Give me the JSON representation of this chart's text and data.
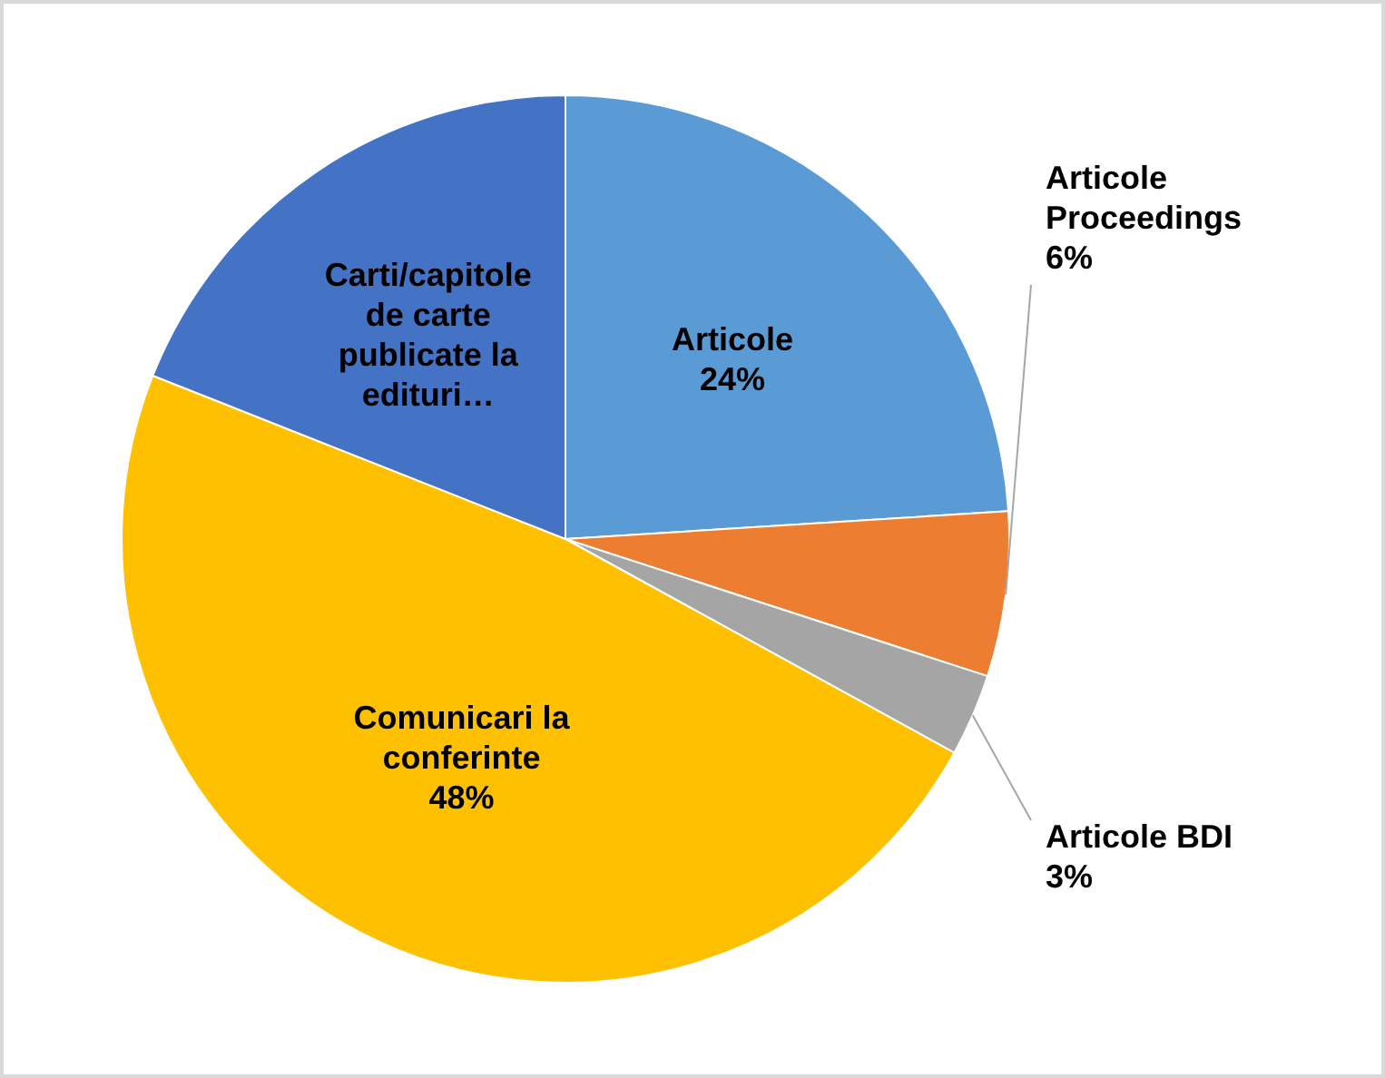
{
  "chart_data": {
    "type": "pie",
    "categories": [
      "Articole",
      "Articole Proceedings",
      "Articole BDI",
      "Comunicari la conferinte",
      "Carti/capitole de carte publicate la edituri…"
    ],
    "values": [
      24,
      6,
      3,
      48,
      19
    ],
    "colors": [
      "#5b9bd5",
      "#ed7d31",
      "#a5a5a5",
      "#ffc000",
      "#4472c4"
    ],
    "value_labels": [
      "24%",
      "6%",
      "3%",
      "48%",
      null
    ],
    "legend": false
  }
}
